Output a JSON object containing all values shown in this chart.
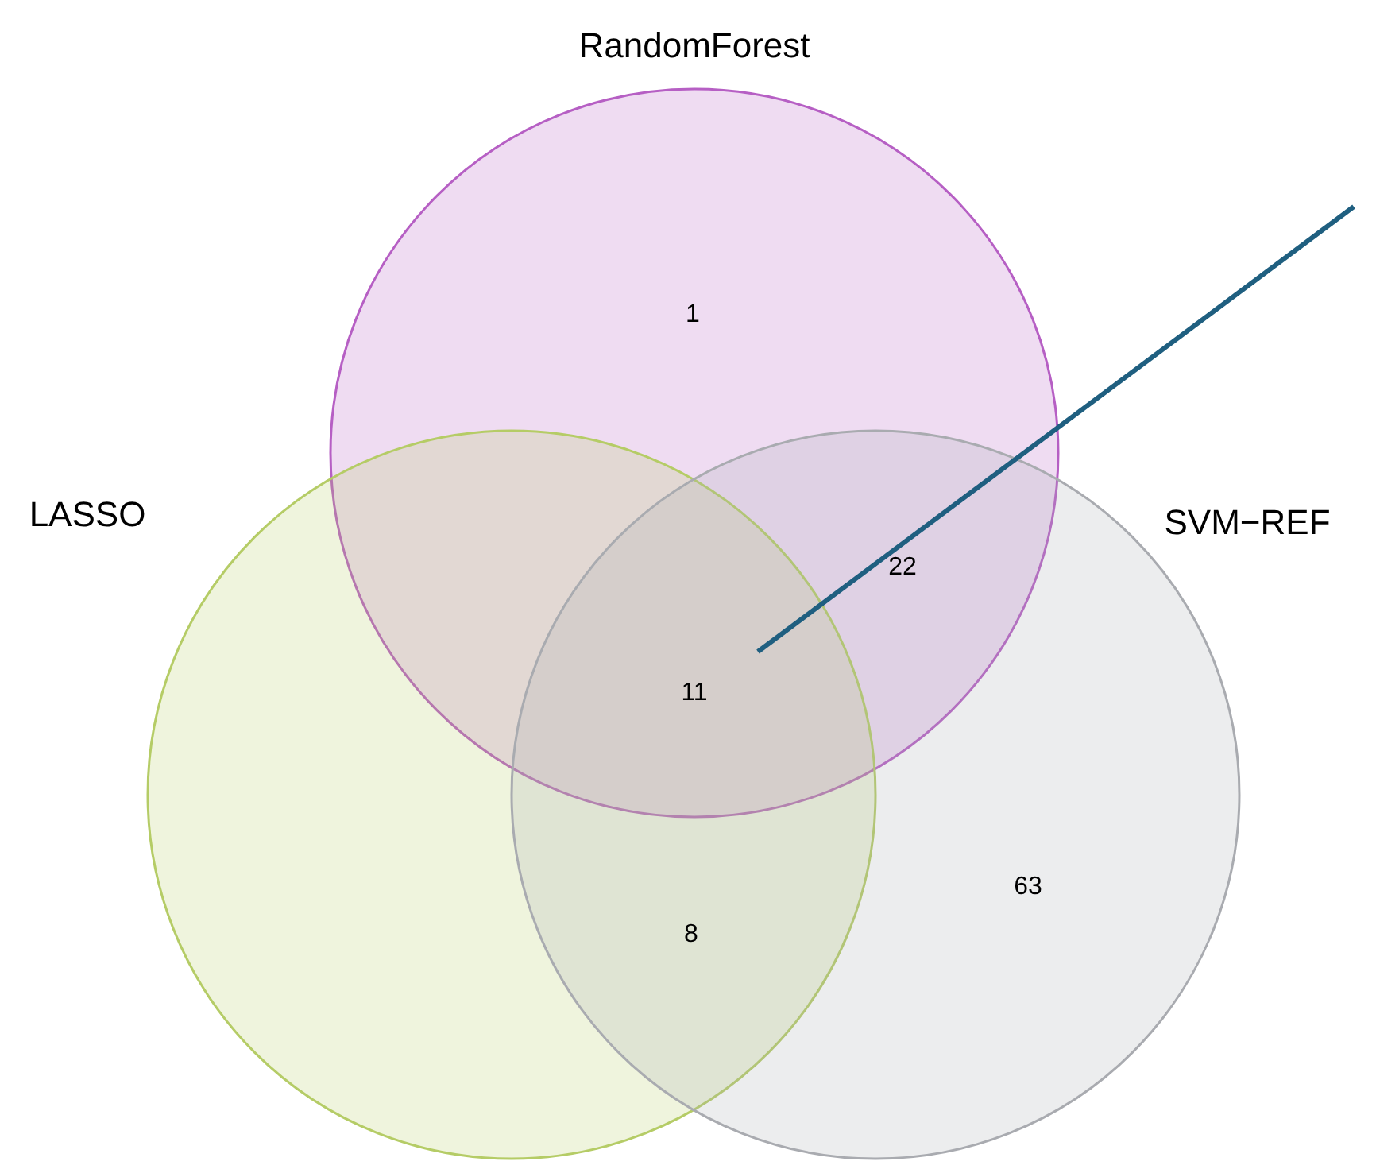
{
  "chart_data": {
    "type": "other",
    "categories": [
      "RandomForest",
      "LASSO",
      "SVM−REF"
    ],
    "colors": [
      "#b65fc4",
      "#b5cc66",
      "#a9abb0"
    ],
    "values": [
      1,
      null,
      63
    ],
    "data_labels": true,
    "annotations": [
      "22",
      "11",
      "8"
    ]
  }
}
